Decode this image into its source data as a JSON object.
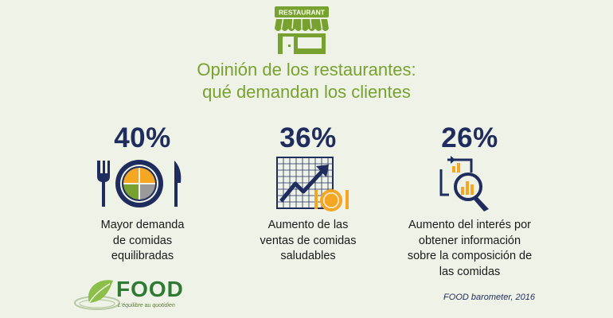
{
  "store_sign": "RESTAURANT",
  "title_line1": "Opinión de los restaurantes:",
  "title_line2": "qué demandan los clientes",
  "stats": [
    {
      "value": "40%",
      "desc": [
        "Mayor demanda",
        "de comidas",
        "equilibradas"
      ],
      "icon": "plate-cutlery-icon"
    },
    {
      "value": "36%",
      "desc": [
        "Aumento de las",
        "ventas de comidas",
        "saludables"
      ],
      "icon": "trend-chart-plate-icon"
    },
    {
      "value": "26%",
      "desc": [
        "Aumento del interés por",
        "obtener información",
        "sobre la composición de",
        "las comidas"
      ],
      "icon": "document-magnifier-icon"
    }
  ],
  "logo": {
    "word": "FOOD",
    "tagline": "L'équilibre au quotidien"
  },
  "source": "FOOD barometer, 2016",
  "colors": {
    "green": "#78a22f",
    "navy": "#1f2c5e",
    "orange": "#f5a623",
    "background": "#eef2e7"
  }
}
